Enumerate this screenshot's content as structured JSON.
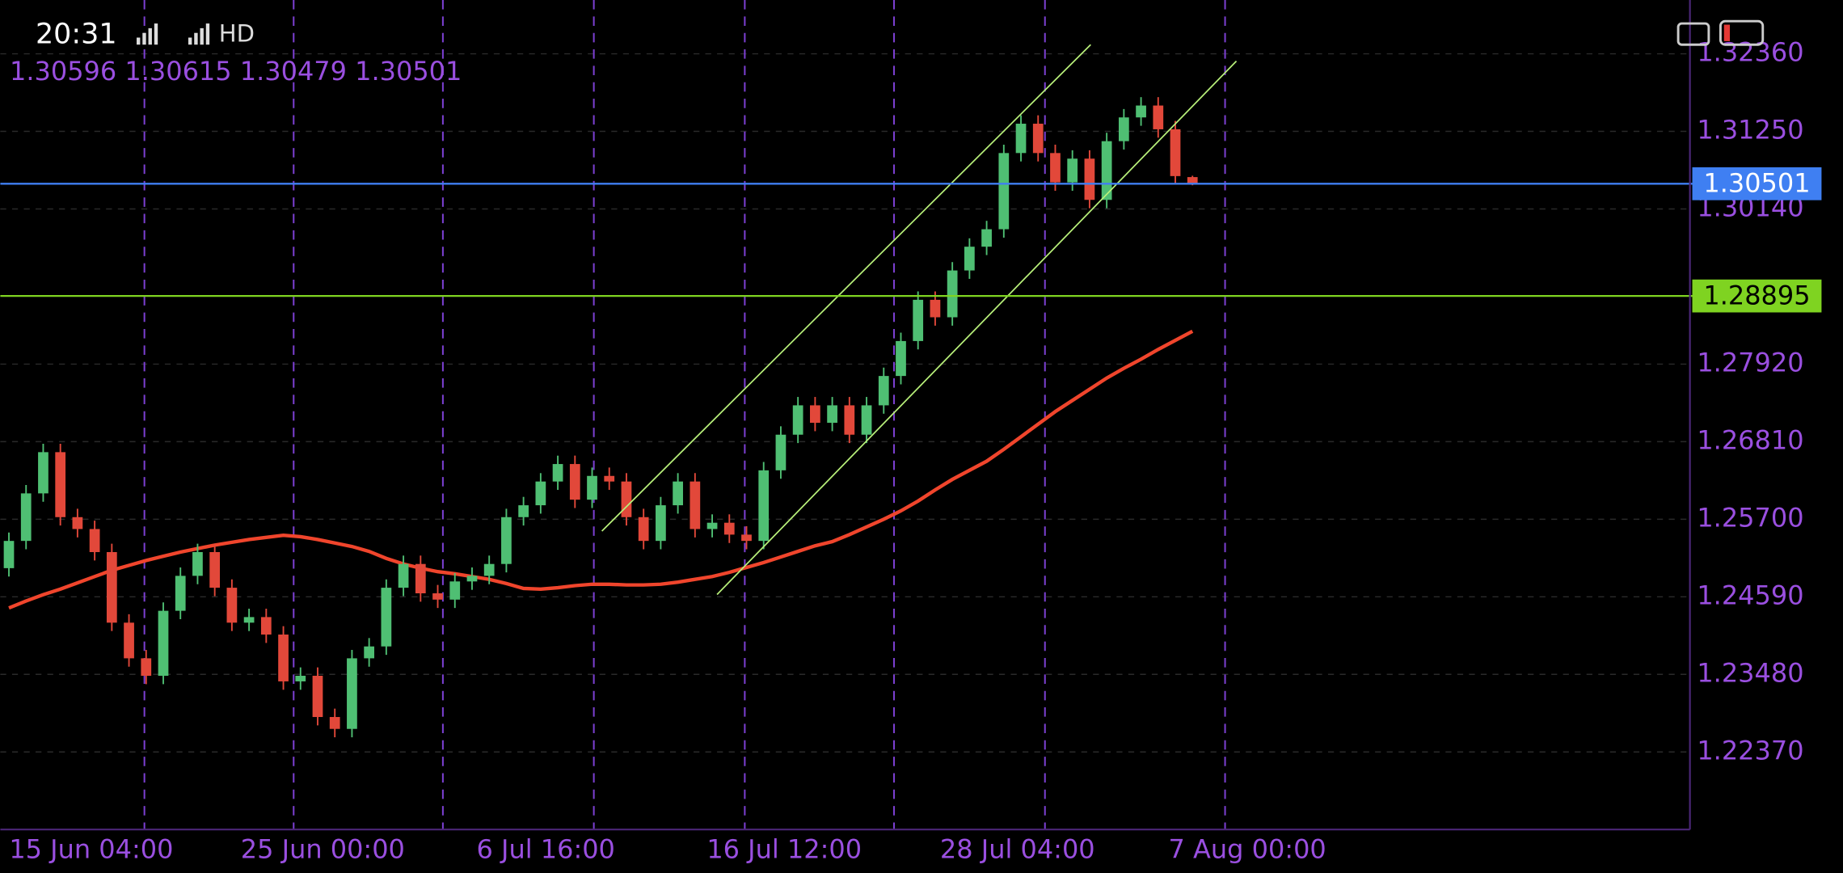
{
  "status_bar": {
    "time": "20:31",
    "network": "HD"
  },
  "chart_data": {
    "type": "candlestick",
    "open": [
      1.25,
      1.2539,
      1.2607,
      1.2666,
      1.2573,
      1.2556,
      1.2523,
      1.2422,
      1.2371,
      1.2346,
      1.2439,
      1.2489,
      1.2523,
      1.2472,
      1.2422,
      1.243,
      1.2405,
      1.2338,
      1.2346,
      1.2287,
      1.227,
      1.2371,
      1.2388,
      1.2472,
      1.2506,
      1.2464,
      1.2455,
      1.2481,
      1.2489,
      1.2506,
      1.2573,
      1.259,
      1.2624,
      1.2649,
      1.2598,
      1.2632,
      1.2624,
      1.2573,
      1.2539,
      1.259,
      1.2624,
      1.2556,
      1.2565,
      1.2548,
      1.2539,
      1.264,
      1.2691,
      1.2733,
      1.2708,
      1.2733,
      1.2691,
      1.2733,
      1.2775,
      1.2825,
      1.2884,
      1.2859,
      1.2926,
      1.296,
      1.2985,
      1.3094,
      1.3136,
      1.3094,
      1.3052,
      1.3086,
      1.3027,
      1.3111,
      1.3145,
      1.3162,
      1.3128,
      1.30596
    ],
    "high": [
      1.2551,
      1.2619,
      1.2678,
      1.2678,
      1.2585,
      1.2568,
      1.2535,
      1.2434,
      1.2383,
      1.2451,
      1.2501,
      1.2535,
      1.2535,
      1.2484,
      1.2442,
      1.2442,
      1.2417,
      1.2358,
      1.2358,
      1.2299,
      1.2383,
      1.24,
      1.2484,
      1.2518,
      1.2518,
      1.2476,
      1.2493,
      1.2501,
      1.2518,
      1.2585,
      1.2602,
      1.2636,
      1.2661,
      1.2661,
      1.2644,
      1.2644,
      1.2636,
      1.2585,
      1.2602,
      1.2636,
      1.2636,
      1.2577,
      1.2577,
      1.256,
      1.2652,
      1.2703,
      1.2745,
      1.2745,
      1.2745,
      1.2745,
      1.2745,
      1.2787,
      1.2837,
      1.2896,
      1.2896,
      1.2938,
      1.2972,
      1.2997,
      1.3106,
      1.3148,
      1.3148,
      1.3106,
      1.3098,
      1.3098,
      1.3123,
      1.3157,
      1.3174,
      1.3174,
      1.314,
      1.30615
    ],
    "low": [
      1.2488,
      1.2527,
      1.2595,
      1.2561,
      1.2544,
      1.2511,
      1.241,
      1.2359,
      1.2334,
      1.2334,
      1.2427,
      1.2477,
      1.246,
      1.241,
      1.241,
      1.2393,
      1.2326,
      1.2326,
      1.2275,
      1.2258,
      1.2258,
      1.2359,
      1.2376,
      1.246,
      1.2452,
      1.2443,
      1.2443,
      1.2469,
      1.2477,
      1.2494,
      1.2561,
      1.2578,
      1.2612,
      1.2586,
      1.2586,
      1.2612,
      1.2561,
      1.2527,
      1.2527,
      1.2578,
      1.2544,
      1.2544,
      1.2536,
      1.2527,
      1.2527,
      1.2628,
      1.2679,
      1.2696,
      1.2696,
      1.2679,
      1.2679,
      1.2721,
      1.2763,
      1.2813,
      1.2847,
      1.2847,
      1.2914,
      1.2948,
      1.2973,
      1.3082,
      1.3082,
      1.304,
      1.304,
      1.3015,
      1.3015,
      1.3099,
      1.3133,
      1.3116,
      1.3049,
      1.30479
    ],
    "close": [
      1.2539,
      1.2607,
      1.2666,
      1.2573,
      1.2556,
      1.2523,
      1.2422,
      1.2371,
      1.2346,
      1.2439,
      1.2489,
      1.2523,
      1.2472,
      1.2422,
      1.243,
      1.2405,
      1.2338,
      1.2346,
      1.2287,
      1.227,
      1.2371,
      1.2388,
      1.2472,
      1.2506,
      1.2464,
      1.2455,
      1.2481,
      1.2489,
      1.2506,
      1.2573,
      1.259,
      1.2624,
      1.2649,
      1.2598,
      1.2632,
      1.2624,
      1.2573,
      1.2539,
      1.259,
      1.2624,
      1.2556,
      1.2565,
      1.2548,
      1.2539,
      1.264,
      1.2691,
      1.2733,
      1.2708,
      1.2733,
      1.2691,
      1.2733,
      1.2775,
      1.2825,
      1.2884,
      1.2859,
      1.2926,
      1.296,
      1.2985,
      1.3094,
      1.3136,
      1.3094,
      1.3052,
      1.3086,
      1.3027,
      1.3111,
      1.3145,
      1.3162,
      1.3128,
      1.3061,
      1.30501
    ],
    "up_color": "#4fbf73",
    "down_color": "#e2483a",
    "lines": [
      {
        "color": "#f0452c",
        "values": [
          1.2443,
          1.2453,
          1.2462,
          1.247,
          1.2479,
          1.2488,
          1.2497,
          1.2504,
          1.2511,
          1.2517,
          1.2523,
          1.2528,
          1.2533,
          1.2537,
          1.2541,
          1.2544,
          1.2547,
          1.2545,
          1.2541,
          1.2536,
          1.2531,
          1.2524,
          1.2514,
          1.2506,
          1.25,
          1.2495,
          1.2492,
          1.2488,
          1.2484,
          1.2478,
          1.2471,
          1.247,
          1.2472,
          1.2475,
          1.2477,
          1.2477,
          1.2476,
          1.2476,
          1.2477,
          1.248,
          1.2484,
          1.2488,
          1.2494,
          1.2501,
          1.2508,
          1.2516,
          1.2524,
          1.2532,
          1.2538,
          1.2548,
          1.2559,
          1.257,
          1.2582,
          1.2596,
          1.2612,
          1.2627,
          1.264,
          1.2653,
          1.267,
          1.2688,
          1.2706,
          1.2724,
          1.274,
          1.2756,
          1.2772,
          1.2786,
          1.2799,
          1.2813,
          1.2826,
          1.2839
        ]
      }
    ],
    "levels": [
      {
        "value": 1.30501,
        "color": "#3f7ff2"
      },
      {
        "value": 1.28895,
        "color": "#7fd321"
      }
    ],
    "separators": [
      7.9,
      16.6,
      25.3,
      34.1,
      42.9,
      51.6,
      60.4,
      70.9
    ],
    "xlim": [
      -0.5,
      98
    ],
    "xticks": [
      {
        "value": 4.8,
        "label": "15 Jun 04:00"
      },
      {
        "value": 18.3,
        "label": "25 Jun 00:00"
      },
      {
        "value": 31.3,
        "label": "6 Jul 16:00"
      },
      {
        "value": 45.2,
        "label": "16 Jul 12:00"
      },
      {
        "value": 58.8,
        "label": "28 Jul 04:00"
      },
      {
        "value": 72.2,
        "label": "7 Aug 00:00"
      }
    ],
    "ylim": [
      1.2126,
      1.3313
    ],
    "yticks": [
      {
        "value": 1.2237,
        "label": "1.22370"
      },
      {
        "value": 1.2348,
        "label": "1.23480"
      },
      {
        "value": 1.2459,
        "label": "1.24590"
      },
      {
        "value": 1.257,
        "label": "1.25700"
      },
      {
        "value": 1.2681,
        "label": "1.26810"
      },
      {
        "value": 1.2792,
        "label": "1.27920"
      },
      {
        "value": 1.3014,
        "label": "1.30140"
      },
      {
        "value": 1.3125,
        "label": "1.31250"
      },
      {
        "value": 1.3236,
        "label": "1.32360"
      }
    ],
    "grid": true
  }
}
